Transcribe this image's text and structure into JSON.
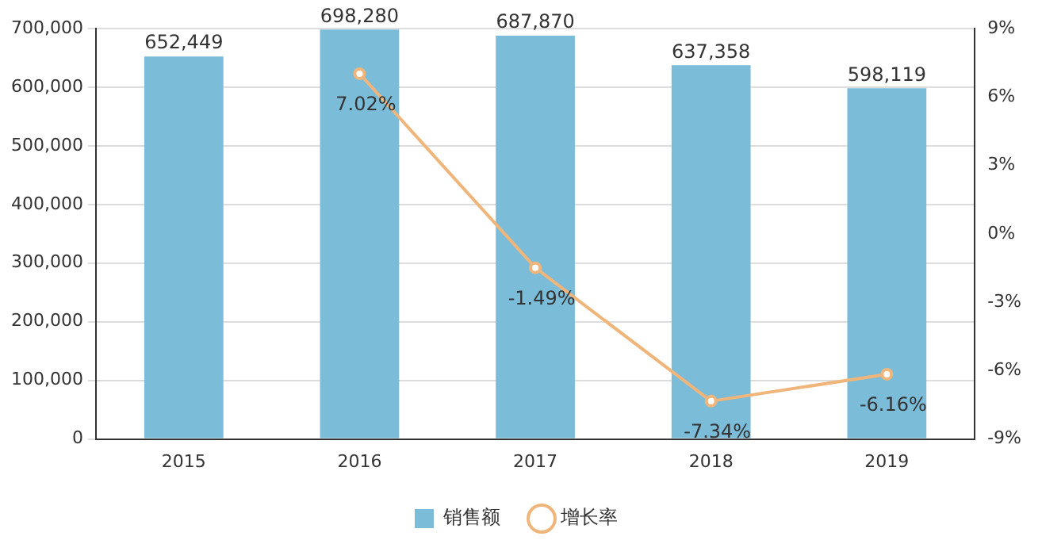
{
  "chart_data": {
    "type": "bar",
    "categories": [
      "2015",
      "2016",
      "2017",
      "2018",
      "2019"
    ],
    "series": [
      {
        "name": "销售额",
        "color": "#7bbcd8",
        "values": [
          652449,
          698280,
          687870,
          637358,
          598119
        ],
        "value_labels": [
          "652,449",
          "698,280",
          "687,870",
          "637,358",
          "598,119"
        ]
      },
      {
        "name": "增长率",
        "type": "line",
        "axis": "y2",
        "color": "#f0b57a",
        "values": [
          null,
          7.02,
          -1.49,
          -7.34,
          -6.16
        ],
        "value_labels": [
          null,
          "7.02%",
          "-1.49%",
          "-7.34%",
          "-6.16%"
        ]
      }
    ],
    "ylim": [
      0,
      700000
    ],
    "yticks": [
      0,
      {
        "value": 100000,
        "label": "100,000"
      },
      {
        "value": 200000,
        "label": "200,000"
      },
      {
        "value": 300000,
        "label": "300,000"
      },
      {
        "value": 400000,
        "label": "400,000"
      },
      {
        "value": 500000,
        "label": "500,000"
      },
      {
        "value": 600000,
        "label": "600,000"
      },
      {
        "value": 700000,
        "label": "700,000"
      }
    ],
    "y2lim": [
      -9,
      9
    ],
    "y2ticks": [
      {
        "value": -9,
        "label": "-9%"
      },
      {
        "value": -6,
        "label": "-6%"
      },
      {
        "value": -3,
        "label": "-3%"
      },
      {
        "value": 0,
        "label": "0%"
      },
      {
        "value": 3,
        "label": "3%"
      },
      {
        "value": 6,
        "label": "6%"
      },
      {
        "value": 9,
        "label": "9%"
      }
    ],
    "grid": "y",
    "legend": "bottom",
    "marker": "circle"
  }
}
